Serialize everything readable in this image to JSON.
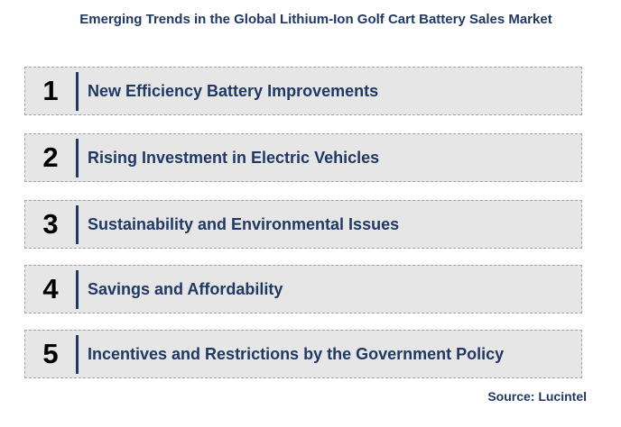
{
  "title": "Emerging Trends in the Global Lithium-Ion Golf Cart Battery Sales Market",
  "trends": [
    {
      "number": "1",
      "label": "New Efficiency Battery Improvements"
    },
    {
      "number": "2",
      "label": "Rising Investment in Electric Vehicles"
    },
    {
      "number": "3",
      "label": "Sustainability and Environmental Issues"
    },
    {
      "number": "4",
      "label": "Savings and Affordability"
    },
    {
      "number": "5",
      "label": "Incentives and Restrictions by the Government Policy"
    }
  ],
  "source": "Source: Lucintel"
}
